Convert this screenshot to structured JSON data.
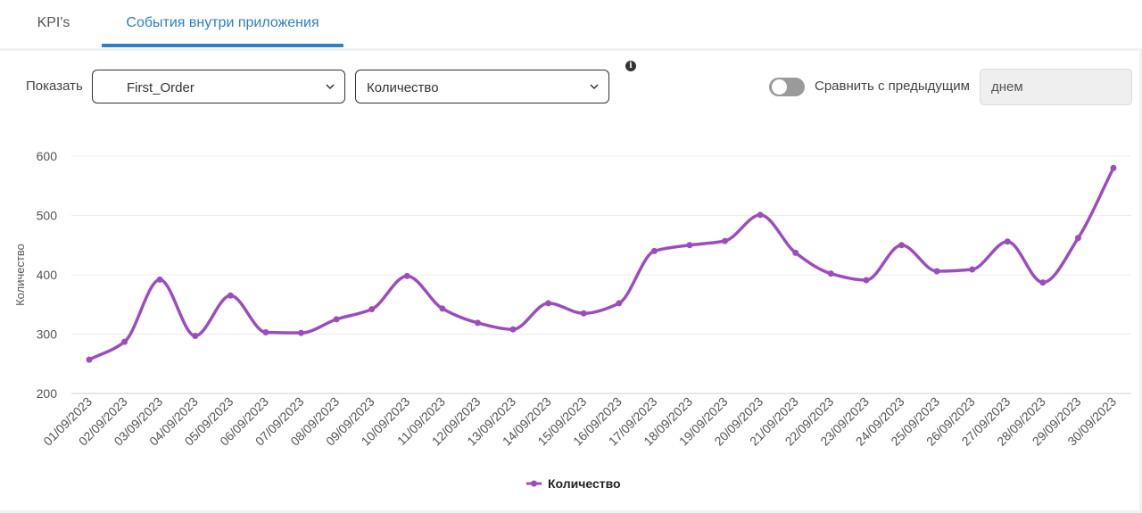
{
  "tabs": [
    {
      "label": "KPI's",
      "active": false
    },
    {
      "label": "События внутри приложения",
      "active": true
    }
  ],
  "controls": {
    "show_label": "Показать",
    "event_select": "First_Order",
    "metric_select": "Количество",
    "compare_label": "Сравнить с предыдущим",
    "compare_enabled": false,
    "period_value": "днем"
  },
  "colors": {
    "accent": "#2f7fc2",
    "series": "#9b4dbd"
  },
  "chart_data": {
    "type": "line",
    "ylabel": "Количество",
    "ylim": [
      200,
      600
    ],
    "y_ticks": [
      200,
      300,
      400,
      500,
      600
    ],
    "grid": true,
    "legend_position": "bottom-center",
    "x": [
      "01/09/2023",
      "02/09/2023",
      "03/09/2023",
      "04/09/2023",
      "05/09/2023",
      "06/09/2023",
      "07/09/2023",
      "08/09/2023",
      "09/09/2023",
      "10/09/2023",
      "11/09/2023",
      "12/09/2023",
      "13/09/2023",
      "14/09/2023",
      "15/09/2023",
      "16/09/2023",
      "17/09/2023",
      "18/09/2023",
      "19/09/2023",
      "20/09/2023",
      "21/09/2023",
      "22/09/2023",
      "23/09/2023",
      "24/09/2023",
      "25/09/2023",
      "26/09/2023",
      "27/09/2023",
      "28/09/2023",
      "29/09/2023",
      "30/09/2023"
    ],
    "series": [
      {
        "name": "Количество",
        "values": [
          257,
          287,
          392,
          297,
          365,
          303,
          302,
          325,
          342,
          398,
          343,
          319,
          308,
          352,
          335,
          352,
          440,
          450,
          457,
          501,
          437,
          402,
          391,
          450,
          406,
          409,
          456,
          387,
          462,
          580
        ]
      }
    ]
  }
}
